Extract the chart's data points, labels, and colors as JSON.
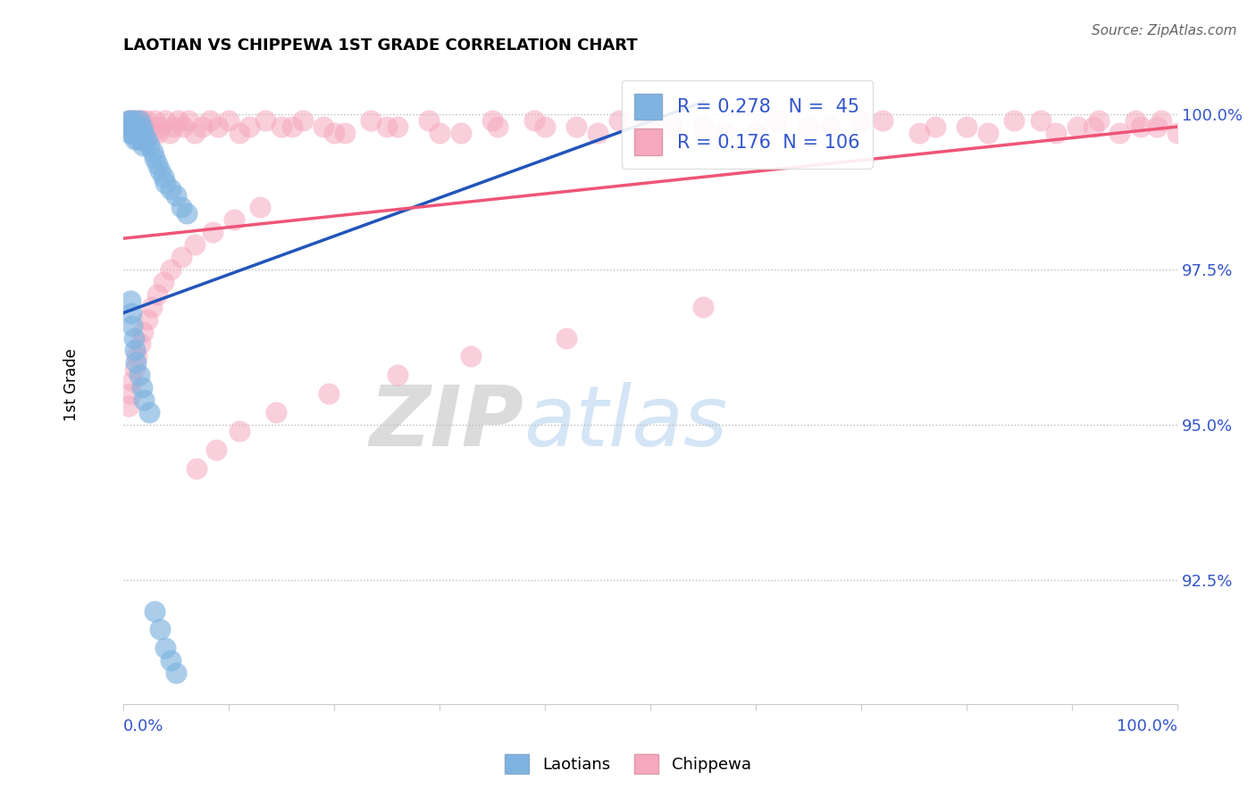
{
  "title": "LAOTIAN VS CHIPPEWA 1ST GRADE CORRELATION CHART",
  "source": "Source: ZipAtlas.com",
  "ylabel": "1st Grade",
  "ylabel_right_labels": [
    "100.0%",
    "97.5%",
    "95.0%",
    "92.5%"
  ],
  "ylabel_right_values": [
    1.0,
    0.975,
    0.95,
    0.925
  ],
  "xmin": 0.0,
  "xmax": 1.0,
  "ymin": 0.905,
  "ymax": 1.008,
  "laotian_R": 0.278,
  "laotian_N": 45,
  "chippewa_R": 0.176,
  "chippewa_N": 106,
  "laotian_color": "#7EB3E0",
  "chippewa_color": "#F5A8BE",
  "laotian_line_color": "#2255BB",
  "chippewa_line_color": "#EE5577",
  "watermark_zip": "ZIP",
  "watermark_atlas": "atlas",
  "lao_trend_x0": 0.0,
  "lao_trend_y0": 0.968,
  "lao_trend_x1": 0.55,
  "lao_trend_y1": 1.002,
  "chip_trend_x0": 0.0,
  "chip_trend_y0": 0.98,
  "chip_trend_x1": 1.0,
  "chip_trend_y1": 0.998,
  "laotian_x": [
    0.005,
    0.005,
    0.006,
    0.007,
    0.008,
    0.009,
    0.01,
    0.01,
    0.011,
    0.012,
    0.013,
    0.014,
    0.015,
    0.016,
    0.017,
    0.018,
    0.019,
    0.02,
    0.022,
    0.025,
    0.028,
    0.03,
    0.032,
    0.035,
    0.038,
    0.04,
    0.045,
    0.05,
    0.055,
    0.06,
    0.007,
    0.008,
    0.009,
    0.01,
    0.011,
    0.012,
    0.015,
    0.018,
    0.02,
    0.025,
    0.03,
    0.035,
    0.04,
    0.045,
    0.05
  ],
  "laotian_y": [
    0.999,
    0.998,
    0.997,
    0.999,
    0.998,
    0.997,
    0.999,
    0.998,
    0.996,
    0.998,
    0.997,
    0.996,
    0.999,
    0.997,
    0.996,
    0.998,
    0.995,
    0.997,
    0.996,
    0.995,
    0.994,
    0.993,
    0.992,
    0.991,
    0.99,
    0.989,
    0.988,
    0.987,
    0.985,
    0.984,
    0.97,
    0.968,
    0.966,
    0.964,
    0.962,
    0.96,
    0.958,
    0.956,
    0.954,
    0.952,
    0.92,
    0.917,
    0.914,
    0.912,
    0.91
  ],
  "chippewa_x": [
    0.005,
    0.007,
    0.008,
    0.009,
    0.01,
    0.011,
    0.012,
    0.013,
    0.014,
    0.015,
    0.016,
    0.017,
    0.018,
    0.019,
    0.02,
    0.022,
    0.025,
    0.028,
    0.03,
    0.033,
    0.036,
    0.04,
    0.044,
    0.048,
    0.052,
    0.057,
    0.062,
    0.068,
    0.075,
    0.082,
    0.09,
    0.1,
    0.11,
    0.12,
    0.135,
    0.15,
    0.17,
    0.19,
    0.21,
    0.235,
    0.26,
    0.29,
    0.32,
    0.355,
    0.39,
    0.43,
    0.47,
    0.52,
    0.57,
    0.62,
    0.67,
    0.72,
    0.77,
    0.82,
    0.87,
    0.92,
    0.96,
    0.98,
    1.0,
    0.985,
    0.965,
    0.945,
    0.925,
    0.905,
    0.885,
    0.845,
    0.8,
    0.755,
    0.7,
    0.65,
    0.6,
    0.55,
    0.5,
    0.45,
    0.4,
    0.35,
    0.3,
    0.25,
    0.2,
    0.16,
    0.13,
    0.105,
    0.085,
    0.068,
    0.055,
    0.045,
    0.038,
    0.032,
    0.027,
    0.023,
    0.019,
    0.016,
    0.013,
    0.011,
    0.009,
    0.007,
    0.005,
    0.55,
    0.42,
    0.33,
    0.26,
    0.195,
    0.145,
    0.11,
    0.088,
    0.07
  ],
  "chippewa_y": [
    0.999,
    0.998,
    0.999,
    0.998,
    0.999,
    0.998,
    0.999,
    0.997,
    0.998,
    0.999,
    0.998,
    0.997,
    0.999,
    0.998,
    0.997,
    0.999,
    0.998,
    0.997,
    0.999,
    0.997,
    0.998,
    0.999,
    0.997,
    0.998,
    0.999,
    0.998,
    0.999,
    0.997,
    0.998,
    0.999,
    0.998,
    0.999,
    0.997,
    0.998,
    0.999,
    0.998,
    0.999,
    0.998,
    0.997,
    0.999,
    0.998,
    0.999,
    0.997,
    0.998,
    0.999,
    0.998,
    0.999,
    0.998,
    0.997,
    0.999,
    0.998,
    0.999,
    0.998,
    0.997,
    0.999,
    0.998,
    0.999,
    0.998,
    0.997,
    0.999,
    0.998,
    0.997,
    0.999,
    0.998,
    0.997,
    0.999,
    0.998,
    0.997,
    0.999,
    0.998,
    0.997,
    0.998,
    0.999,
    0.997,
    0.998,
    0.999,
    0.997,
    0.998,
    0.997,
    0.998,
    0.985,
    0.983,
    0.981,
    0.979,
    0.977,
    0.975,
    0.973,
    0.971,
    0.969,
    0.967,
    0.965,
    0.963,
    0.961,
    0.959,
    0.957,
    0.955,
    0.953,
    0.969,
    0.964,
    0.961,
    0.958,
    0.955,
    0.952,
    0.949,
    0.946,
    0.943
  ]
}
